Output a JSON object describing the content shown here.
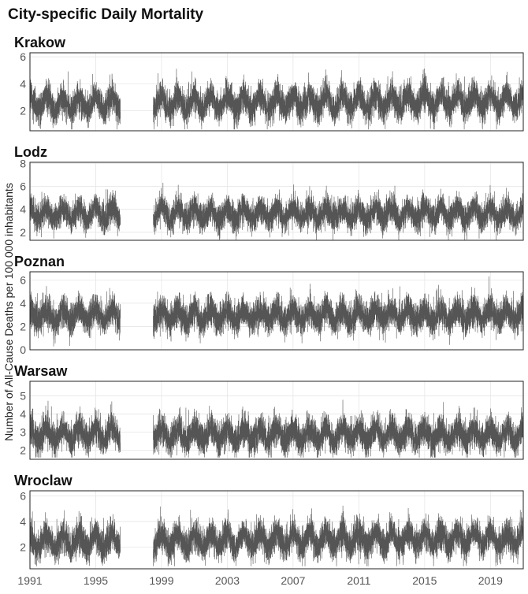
{
  "title": "City-specific Daily Mortality",
  "chart_data": {
    "type": "line",
    "title": "City-specific Daily Mortality",
    "xlabel": "",
    "ylabel": "Number of All-Cause Deaths per 100 000 inhabitants",
    "xlim": [
      "1991-01-01",
      "2020-12-31"
    ],
    "x_ticks": [
      "1991",
      "1995",
      "1999",
      "2003",
      "2007",
      "2011",
      "2015",
      "2019"
    ],
    "gap": {
      "from": "1996-07-01",
      "to": "1998-07-01"
    },
    "line_color": "#555555",
    "grid": true,
    "panels": [
      {
        "name": "Krakow",
        "ylim": [
          0.5,
          6.3
        ],
        "y_ticks": [
          2,
          4,
          6
        ],
        "series": {
          "mean": 2.5,
          "amplitude": 0.55,
          "trend": 0.008,
          "spread": 0.55,
          "min": 0.6,
          "max": 5.9
        }
      },
      {
        "name": "Lodz",
        "ylim": [
          1.3,
          8.1
        ],
        "y_ticks": [
          2,
          4,
          6,
          8
        ],
        "series": {
          "mean": 3.6,
          "amplitude": 0.5,
          "trend": 0.0,
          "spread": 0.6,
          "min": 1.3,
          "max": 7.8
        }
      },
      {
        "name": "Poznan",
        "ylim": [
          0.0,
          6.7
        ],
        "y_ticks": [
          0,
          2,
          4,
          6
        ],
        "series": {
          "mean": 2.9,
          "amplitude": 0.5,
          "trend": 0.003,
          "spread": 0.65,
          "min": 0.3,
          "max": 6.6
        }
      },
      {
        "name": "Warsaw",
        "ylim": [
          1.5,
          5.8
        ],
        "y_ticks": [
          2,
          3,
          4,
          5
        ],
        "series": {
          "mean": 2.85,
          "amplitude": 0.35,
          "trend": 0.0,
          "spread": 0.42,
          "min": 1.6,
          "max": 5.6
        }
      },
      {
        "name": "Wroclaw",
        "ylim": [
          0.3,
          6.4
        ],
        "y_ticks": [
          2,
          4,
          6
        ],
        "series": {
          "mean": 2.4,
          "amplitude": 0.55,
          "trend": 0.01,
          "spread": 0.6,
          "min": 0.5,
          "max": 6.0
        }
      }
    ]
  }
}
